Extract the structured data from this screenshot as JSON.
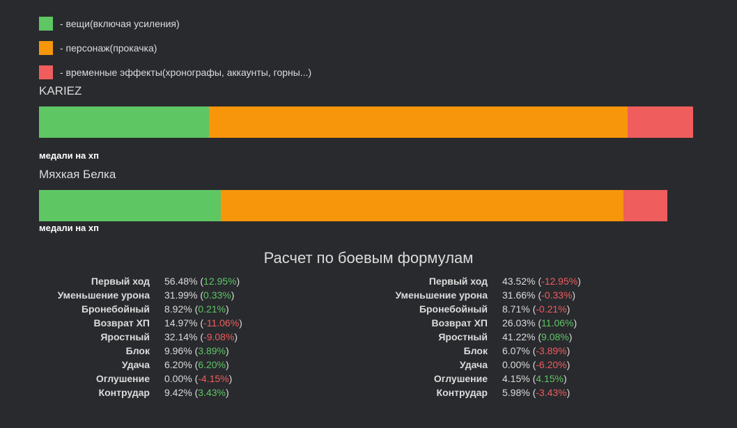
{
  "legend": [
    {
      "label": "- вещи(включая усиления)",
      "color": "#5fc664"
    },
    {
      "label": "- персонаж(прокачка)",
      "color": "#f7960b"
    },
    {
      "label": "- временные эффекты(хронографы, аккаунты, горны...)",
      "color": "#ef5d5d"
    }
  ],
  "players": [
    {
      "name": "KARIEZ",
      "segments": [
        244,
        601,
        94
      ],
      "note": "медали на хп"
    },
    {
      "name": "Мяхкая Белка",
      "segments": [
        261,
        578,
        63
      ],
      "note": "медали на хп"
    }
  ],
  "section_title": "Расчет по боевым формулам",
  "stats": [
    {
      "rows": [
        {
          "label": "Первый ход",
          "value": "56.48%",
          "delta": "12.95%"
        },
        {
          "label": "Уменьшение урона",
          "value": "31.99%",
          "delta": "0.33%"
        },
        {
          "label": "Бронебойный",
          "value": "8.92%",
          "delta": "0.21%"
        },
        {
          "label": "Возврат ХП",
          "value": "14.97%",
          "delta": "-11.06%"
        },
        {
          "label": "Яростный",
          "value": "32.14%",
          "delta": "-9.08%"
        },
        {
          "label": "Блок",
          "value": "9.96%",
          "delta": "3.89%"
        },
        {
          "label": "Удача",
          "value": "6.20%",
          "delta": "6.20%"
        },
        {
          "label": "Оглушение",
          "value": "0.00%",
          "delta": "-4.15%"
        },
        {
          "label": "Контрудар",
          "value": "9.42%",
          "delta": "3.43%"
        }
      ]
    },
    {
      "rows": [
        {
          "label": "Первый ход",
          "value": "43.52%",
          "delta": "-12.95%"
        },
        {
          "label": "Уменьшение урона",
          "value": "31.66%",
          "delta": "-0.33%"
        },
        {
          "label": "Бронебойный",
          "value": "8.71%",
          "delta": "-0.21%"
        },
        {
          "label": "Возврат ХП",
          "value": "26.03%",
          "delta": "11.06%"
        },
        {
          "label": "Яростный",
          "value": "41.22%",
          "delta": "9.08%"
        },
        {
          "label": "Блок",
          "value": "6.07%",
          "delta": "-3.89%"
        },
        {
          "label": "Удача",
          "value": "0.00%",
          "delta": "-6.20%"
        },
        {
          "label": "Оглушение",
          "value": "4.15%",
          "delta": "4.15%"
        },
        {
          "label": "Контрудар",
          "value": "5.98%",
          "delta": "-3.43%"
        }
      ]
    }
  ]
}
